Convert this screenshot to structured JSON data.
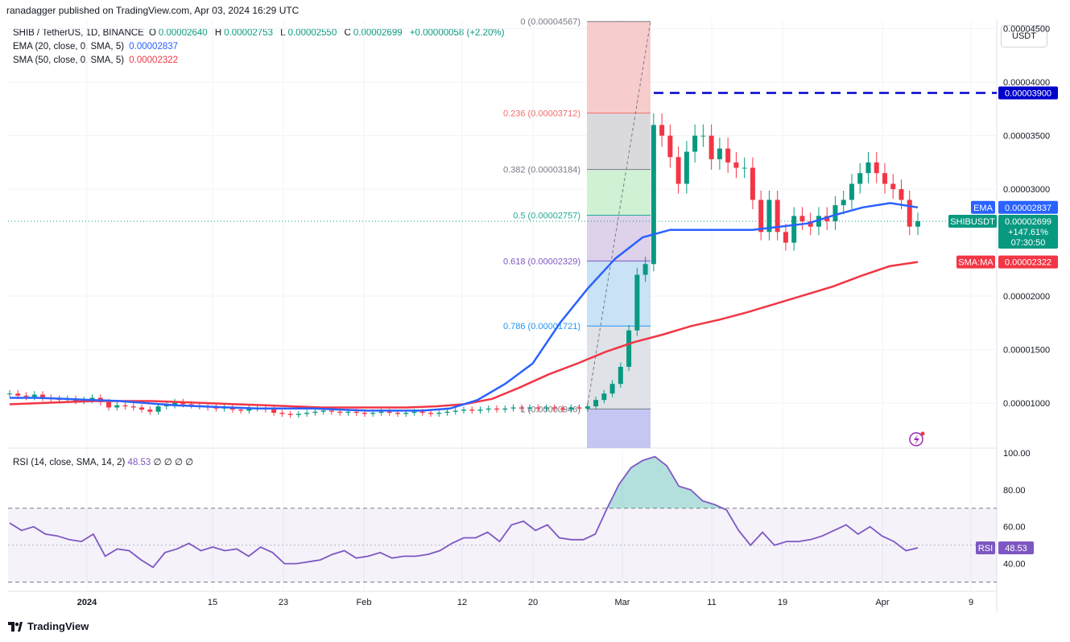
{
  "header": {
    "published": "ranadagger published on TradingView.com, Apr 03, 2024 16:29 UTC"
  },
  "legend": {
    "symbol": "SHIB / TetherUS, 1D, BINANCE",
    "o_label": "O",
    "o_value": "0.00002640",
    "h_label": "H",
    "h_value": "0.00002753",
    "l_label": "L",
    "l_value": "0.00002550",
    "c_label": "C",
    "c_value": "0.00002699",
    "change": "+0.00000058 (+2.20%)",
    "ema_label": "EMA (20, close, 0, SMA, 5)",
    "ema_value": "0.00002837",
    "sma_label": "SMA (50, close, 0, SMA, 5)",
    "sma_value": "0.00002322"
  },
  "currency_button": "USDT",
  "rsi_legend": {
    "label": "RSI (14, close, SMA, 14, 2)",
    "value": "48.53",
    "extras": "∅ ∅ ∅ ∅"
  },
  "brand": "TradingView",
  "colors": {
    "up": "#089981",
    "down": "#f23645",
    "ema": "#2962ff",
    "sma": "#f23645",
    "rsi": "#7e57c2",
    "resistance": "#0000cc"
  },
  "chart_data": {
    "type": "candlestick",
    "price_axis": {
      "ticks": [
        "0.00004500",
        "0.00004000",
        "0.00003500",
        "0.00003000",
        "0.00002000",
        "0.00001500",
        "0.00001000"
      ],
      "range": [
        5.8e-06,
        4.58e-05
      ]
    },
    "time_axis": {
      "ticks": [
        "2024",
        "15",
        "23",
        "Feb",
        "12",
        "20",
        "Mar",
        "11",
        "19",
        "Apr",
        "9"
      ]
    },
    "price_labels": {
      "resistance": "0.00003900",
      "ema_tag": "EMA",
      "ema_value": "0.00002837",
      "symbol_tag": "SHIBUSDT",
      "last_price": "0.00002699",
      "last_change": "+147.61%",
      "countdown": "07:30:50",
      "sma_tag": "SMA:MA",
      "sma_value": "0.00002322"
    },
    "resistance_level": 3.9e-05,
    "fibonacci": [
      {
        "level": "0",
        "label": "0 (0.00004567)",
        "price": 4.567e-05
      },
      {
        "level": "0.236",
        "label": "0.236 (0.00003712)",
        "price": 3.712e-05
      },
      {
        "level": "0.382",
        "label": "0.382 (0.00003184)",
        "price": 3.184e-05
      },
      {
        "level": "0.5",
        "label": "0.5 (0.00002757)",
        "price": 2.757e-05
      },
      {
        "level": "0.618",
        "label": "0.618 (0.00002329)",
        "price": 2.329e-05
      },
      {
        "level": "0.786",
        "label": "0.786 (0.00001721)",
        "price": 1.721e-05
      },
      {
        "level": "1",
        "label": "1 (0.00000946)",
        "price": 9.46e-06
      }
    ],
    "candles_close": [
      1.09e-05,
      1.07e-05,
      1.06e-05,
      1.08e-05,
      1.05e-05,
      1.04e-05,
      1.03e-05,
      1.04e-05,
      1.02e-05,
      1.03e-05,
      1.05e-05,
      1.01e-05,
      9.6e-06,
      9.8e-06,
      9.7e-06,
      9.6e-06,
      9.4e-06,
      9.2e-06,
      9.7e-06,
      9.8e-06,
      1.01e-05,
      9.9e-06,
      9.8e-06,
      9.7e-06,
      9.6e-06,
      9.5e-06,
      9.6e-06,
      9.4e-06,
      9.3e-06,
      9.5e-06,
      9.6e-06,
      9.4e-06,
      9.1e-06,
      9e-06,
      8.9e-06,
      9e-06,
      9.1e-06,
      9.2e-06,
      9.3e-06,
      9.2e-06,
      9.1e-06,
      9.2e-06,
      9.1e-06,
      9e-06,
      9.1e-06,
      9.2e-06,
      9.1e-06,
      9e-06,
      9.1e-06,
      9.2e-06,
      9.1e-06,
      9e-06,
      9.1e-06,
      9.2e-06,
      9.3e-06,
      9.4e-06,
      9.3e-06,
      9.4e-06,
      9.5e-06,
      9.4e-06,
      9.5e-06,
      9.6e-06,
      9.5e-06,
      9.6e-06,
      9.5e-06,
      9.6e-06,
      9.5e-06,
      9.4e-06,
      9.6e-06,
      9.5e-06,
      9.7e-06,
      1.03e-05,
      1.09e-05,
      1.18e-05,
      1.34e-05,
      1.68e-05,
      2.2e-05,
      2.3e-05,
      3.6e-05,
      3.5e-05,
      3.3e-05,
      3.05e-05,
      3.35e-05,
      3.5e-05,
      3.5e-05,
      3.28e-05,
      3.38e-05,
      3.25e-05,
      3.2e-05,
      3.2e-05,
      2.9e-05,
      2.6e-05,
      2.9e-05,
      2.6e-05,
      2.5e-05,
      2.75e-05,
      2.7e-05,
      2.65e-05,
      2.75e-05,
      2.7e-05,
      2.85e-05,
      2.9e-05,
      3.05e-05,
      3.15e-05,
      3.25e-05,
      3.15e-05,
      3.05e-05,
      3e-05,
      2.9e-05,
      2.65e-05,
      2.7e-05
    ],
    "ema": [
      1.05e-05,
      1.05e-05,
      1.04e-05,
      1.03e-05,
      1.02e-05,
      1e-05,
      9.8e-06,
      9.7e-06,
      9.6e-06,
      9.5e-06,
      9.5e-06,
      9.5e-06,
      9.4e-06,
      9.3e-06,
      9.3e-06,
      9.3e-06,
      9.5e-06,
      1.03e-05,
      1.18e-05,
      1.37e-05,
      1.75e-05,
      2.07e-05,
      2.35e-05,
      2.55e-05,
      2.62e-05,
      2.62e-05,
      2.62e-05,
      2.62e-05,
      2.65e-05,
      2.68e-05,
      2.76e-05,
      2.83e-05,
      2.87e-05,
      2.83e-05
    ],
    "sma": [
      9.9e-06,
      1e-05,
      1.01e-05,
      1.02e-05,
      1.02e-05,
      1.02e-05,
      1.01e-05,
      1e-05,
      9.9e-06,
      9.8e-06,
      9.7e-06,
      9.6e-06,
      9.6e-06,
      9.6e-06,
      9.6e-06,
      9.7e-06,
      9.9e-06,
      1.04e-05,
      1.15e-05,
      1.27e-05,
      1.37e-05,
      1.48e-05,
      1.57e-05,
      1.64e-05,
      1.72e-05,
      1.78e-05,
      1.85e-05,
      1.93e-05,
      2.01e-05,
      2.09e-05,
      2.19e-05,
      2.28e-05,
      2.32e-05
    ],
    "rsi": {
      "values": [
        62,
        58,
        60,
        56,
        55,
        53,
        52,
        56,
        44,
        48,
        47,
        42,
        38,
        46,
        48,
        51,
        47,
        49,
        47,
        48,
        44,
        49,
        46,
        40,
        40,
        41,
        42,
        45,
        47,
        43,
        44,
        46,
        43,
        44,
        44,
        45,
        47,
        51,
        54,
        54,
        57,
        52,
        61,
        63,
        58,
        61,
        54,
        53,
        53,
        56,
        70,
        83,
        92,
        96,
        98,
        93,
        82,
        80,
        74,
        72,
        69,
        58,
        50,
        57,
        50,
        52,
        52,
        53,
        55,
        58,
        61,
        56,
        60,
        55,
        52,
        47,
        48.53
      ],
      "range": [
        25,
        100
      ],
      "ticks": [
        "100.00",
        "80.00",
        "60.00",
        "40.00"
      ],
      "upper_band": 70,
      "middle": 50,
      "lower_band": 30,
      "tag": "RSI",
      "value_label": "48.53"
    }
  }
}
